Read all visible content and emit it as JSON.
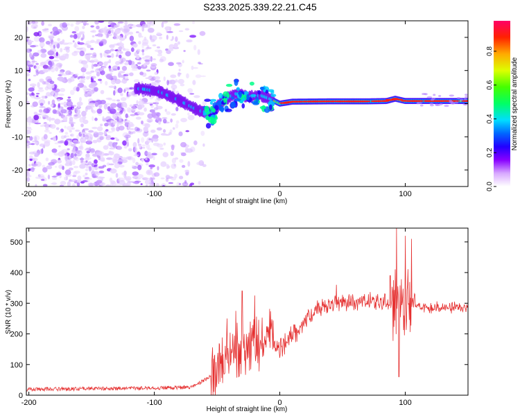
{
  "title": "S233.2025.339.22.21.C45",
  "colors": {
    "line": "#e53030",
    "axis": "#000000",
    "grid_bg": "#ffffff"
  },
  "chart_data": [
    {
      "type": "heatmap",
      "xlabel": "Height of straight line (km)",
      "ylabel": "Frequency (Hz)",
      "xlim": [
        -202,
        150
      ],
      "ylim": [
        -25,
        25
      ],
      "xticks": [
        -200,
        -100,
        0,
        100
      ],
      "xtick_labels": [
        "-200",
        "-100",
        "0",
        "100"
      ],
      "yticks": [
        -20,
        -10,
        0,
        10,
        20
      ],
      "ytick_labels": [
        "-20",
        "-10",
        "0",
        "10",
        "20"
      ],
      "ridge": [
        [
          -110,
          4.5
        ],
        [
          -95,
          3.5
        ],
        [
          -80,
          1
        ],
        [
          -65,
          -2
        ],
        [
          -55,
          -3
        ],
        [
          -45,
          1
        ],
        [
          -35,
          3
        ],
        [
          -25,
          2
        ],
        [
          -15,
          2.5
        ],
        [
          -8,
          1.5
        ],
        [
          0,
          0
        ],
        [
          10,
          0.6
        ],
        [
          40,
          0.7
        ],
        [
          70,
          0.7
        ],
        [
          85,
          0.8
        ],
        [
          92,
          1.5
        ],
        [
          100,
          0.8
        ],
        [
          120,
          0.8
        ],
        [
          150,
          0.8
        ]
      ],
      "colorbar": {
        "label": "Normalized spectral amplitude",
        "range": [
          0,
          1
        ],
        "ticks": [
          0,
          0.2,
          0.4,
          0.6,
          0.8
        ],
        "tick_labels": [
          "0.0",
          "0.2",
          "0.4",
          "0.6",
          "0.8"
        ]
      }
    },
    {
      "type": "line",
      "xlabel": "Height of straight line (km)",
      "ylabel": "SNR (10 * v/v)",
      "xlim": [
        -202,
        150
      ],
      "ylim": [
        0,
        545
      ],
      "xticks": [
        -200,
        -100,
        0,
        100
      ],
      "xtick_labels": [
        "-200",
        "-100",
        "0",
        "100"
      ],
      "yticks": [
        0,
        100,
        200,
        300,
        400,
        500
      ],
      "ytick_labels": [
        "0",
        "100",
        "200",
        "300",
        "400",
        "500"
      ],
      "envelope": [
        [
          -202,
          18
        ],
        [
          -100,
          22
        ],
        [
          -70,
          25
        ],
        [
          -55,
          60
        ],
        [
          -45,
          120
        ],
        [
          -35,
          160
        ],
        [
          -25,
          150
        ],
        [
          -15,
          175
        ],
        [
          -8,
          185
        ],
        [
          0,
          150
        ],
        [
          5,
          180
        ],
        [
          15,
          220
        ],
        [
          25,
          265
        ],
        [
          35,
          285
        ],
        [
          45,
          300
        ],
        [
          60,
          305
        ],
        [
          80,
          305
        ],
        [
          95,
          290
        ],
        [
          110,
          290
        ],
        [
          130,
          285
        ],
        [
          150,
          285
        ]
      ],
      "spikes": [
        [
          -42,
          250
        ],
        [
          -35,
          275
        ],
        [
          -30,
          340
        ],
        [
          -20,
          325
        ],
        [
          45,
          360
        ],
        [
          88,
          390
        ],
        [
          93,
          545
        ],
        [
          95,
          60
        ],
        [
          100,
          520
        ],
        [
          105,
          510
        ]
      ]
    }
  ]
}
